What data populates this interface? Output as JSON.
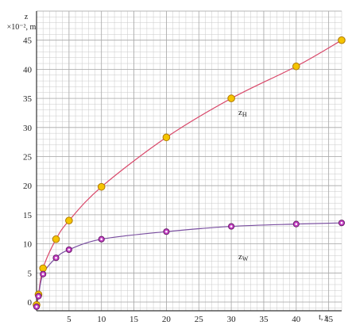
{
  "chart_data": {
    "type": "scatter",
    "ylabel": "z",
    "ylabel_unit": "×10⁻², m",
    "xlabel": "t, s",
    "xlim": [
      0,
      47
    ],
    "ylim": [
      -1.5,
      50
    ],
    "x_ticks": [
      5,
      10,
      15,
      20,
      25,
      30,
      35,
      40,
      45
    ],
    "y_ticks": [
      0,
      5,
      10,
      15,
      20,
      25,
      30,
      35,
      40,
      45
    ],
    "grid": true,
    "series": [
      {
        "name": "z_H",
        "label_main": "z",
        "label_sub": "H",
        "color": "#d9486a",
        "marker_fill": "#f5c400",
        "marker_stroke": "#b07a00",
        "points": [
          {
            "x": 0,
            "y": -0.5
          },
          {
            "x": 0.3,
            "y": 1.3
          },
          {
            "x": 1,
            "y": 5.8
          },
          {
            "x": 3,
            "y": 10.8
          },
          {
            "x": 5,
            "y": 14.0
          },
          {
            "x": 10,
            "y": 19.8
          },
          {
            "x": 20,
            "y": 28.3
          },
          {
            "x": 30,
            "y": 35.0
          },
          {
            "x": 40,
            "y": 40.5
          },
          {
            "x": 47,
            "y": 45.0
          }
        ]
      },
      {
        "name": "z_W",
        "label_main": "z",
        "label_sub": "W",
        "color": "#7a4fa0",
        "marker_fill": "#c640c6",
        "marker_stroke": "#6a1f6a",
        "points": [
          {
            "x": 0,
            "y": -0.8
          },
          {
            "x": 0.3,
            "y": 1.0
          },
          {
            "x": 1,
            "y": 4.8
          },
          {
            "x": 3,
            "y": 7.6
          },
          {
            "x": 5,
            "y": 9.0
          },
          {
            "x": 10,
            "y": 10.8
          },
          {
            "x": 20,
            "y": 12.1
          },
          {
            "x": 30,
            "y": 13.0
          },
          {
            "x": 40,
            "y": 13.4
          },
          {
            "x": 47,
            "y": 13.6
          }
        ]
      }
    ]
  }
}
